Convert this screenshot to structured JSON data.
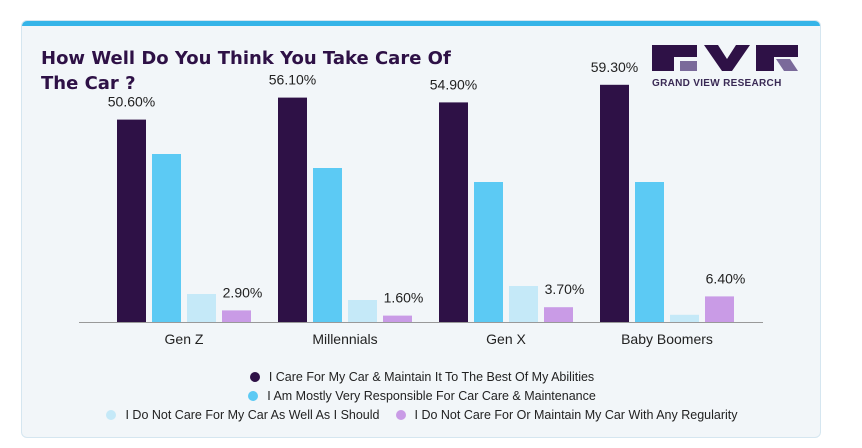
{
  "title": "How Well Do You Think You Take Care Of The Car ?",
  "brand": {
    "name": "GRAND VIEW RESEARCH",
    "colors": {
      "dark": "#2e1146",
      "light": "#7a6a9a"
    }
  },
  "chart_data": {
    "type": "bar",
    "categories": [
      "Gen Z",
      "Millennials",
      "Gen X",
      "Baby Boomers"
    ],
    "series": [
      {
        "name": "I Care For My Car & Maintain It To The Best Of My Abilities",
        "color": "#2e1146",
        "values": [
          50.6,
          56.1,
          54.9,
          59.3
        ],
        "labels": [
          "50.60%",
          "56.10%",
          "54.90%",
          "59.30%"
        ]
      },
      {
        "name": "I Am Mostly Very Responsible For Car Care & Maintenance",
        "color": "#5ccaf4",
        "values": [
          42.0,
          38.5,
          35.0,
          35.0
        ]
      },
      {
        "name": "I Do Not Care For My Car As Well As I Should",
        "color": "#c5e9f8",
        "values": [
          7.0,
          5.5,
          9.0,
          1.8
        ]
      },
      {
        "name": "I Do Not Care For Or Maintain My Car With Any Regularity",
        "color": "#c99be6",
        "values": [
          2.9,
          1.6,
          3.7,
          6.4
        ],
        "labels": [
          "2.90%",
          "1.60%",
          "3.70%",
          "6.40%"
        ]
      }
    ],
    "ylim": [
      0,
      65
    ],
    "grid": false,
    "legend_position": "bottom"
  }
}
